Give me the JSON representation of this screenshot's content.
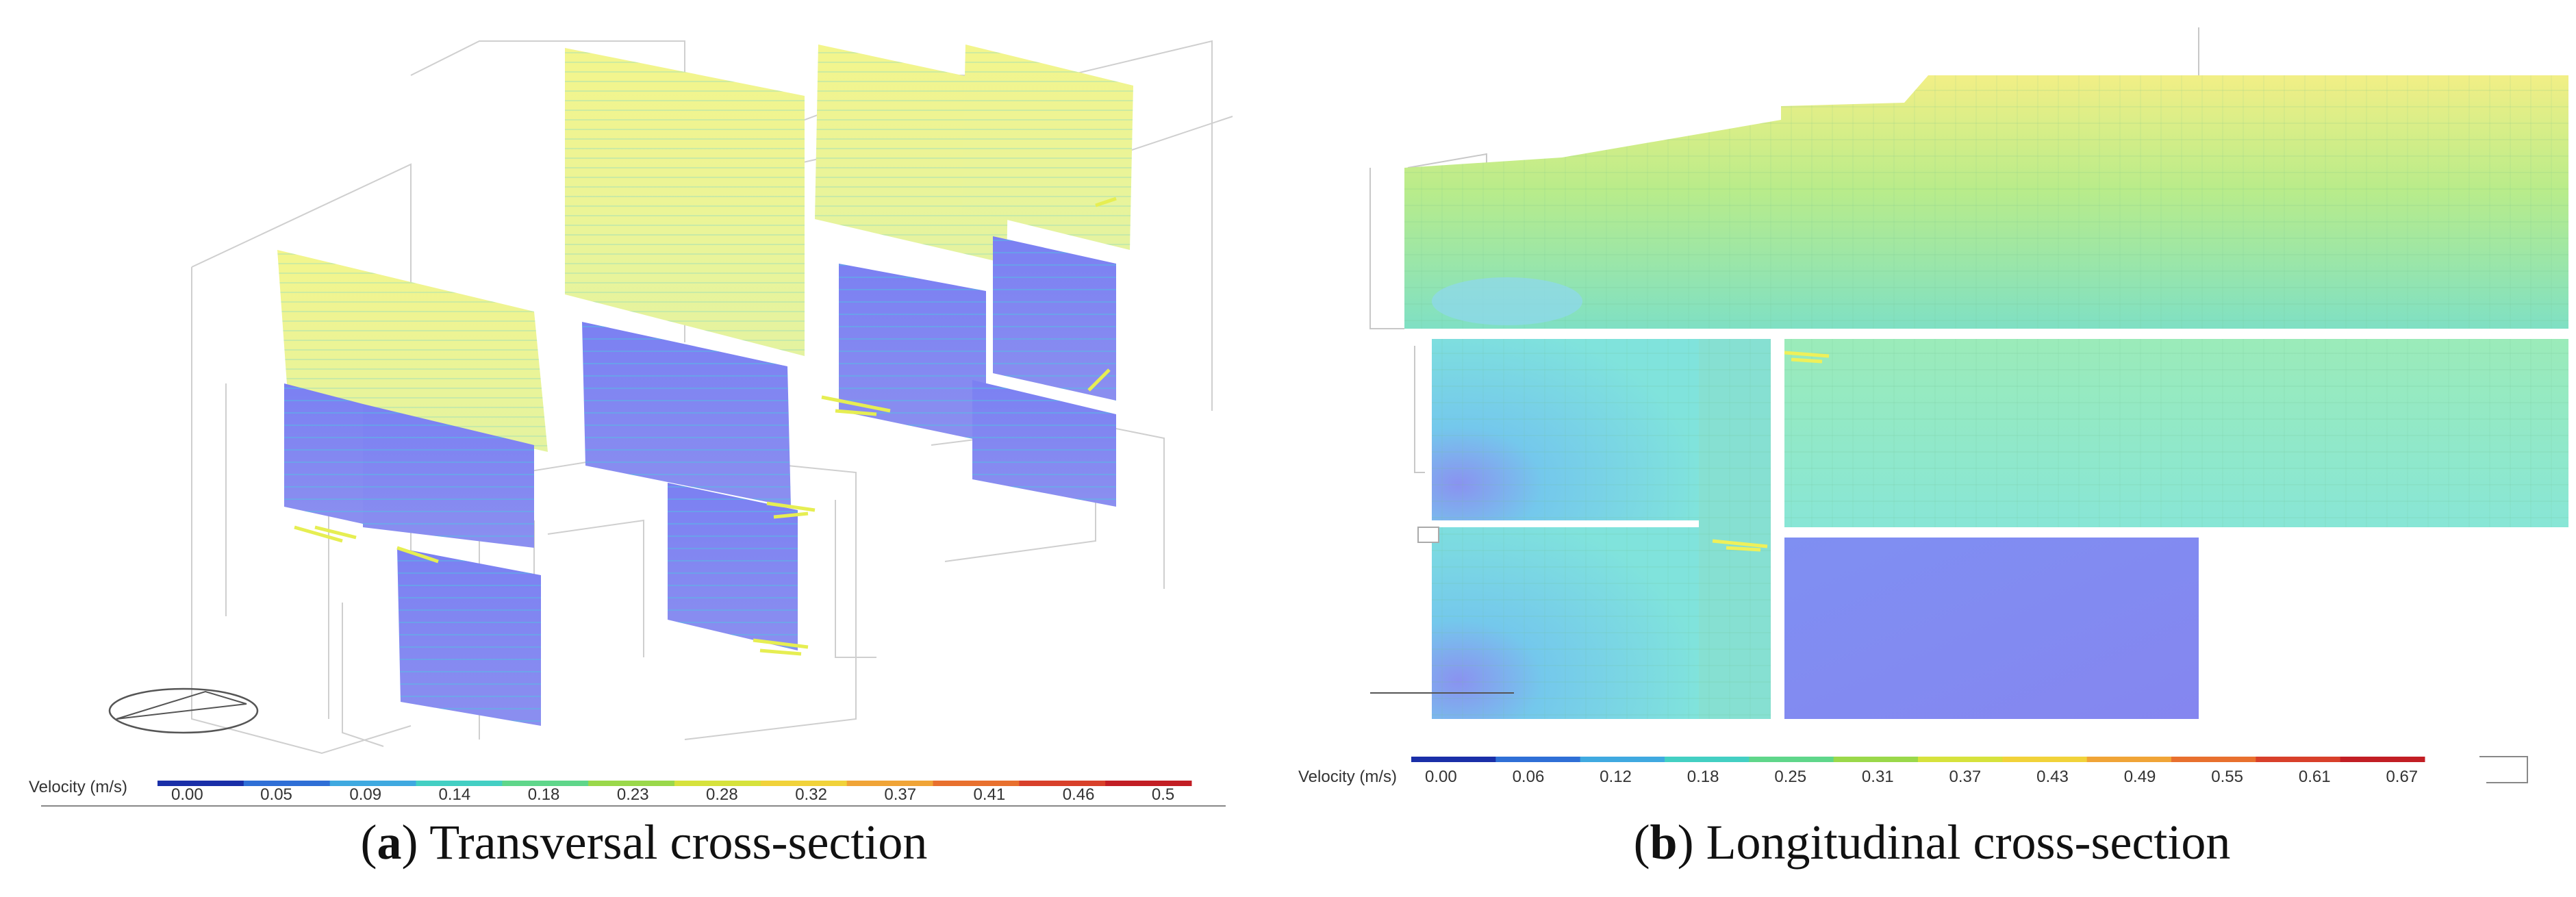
{
  "panels": [
    {
      "letter": "a",
      "caption": "Transversal cross-section",
      "legend": {
        "title": "Velocity (m/s)",
        "ticks": [
          "0.00",
          "0.05",
          "0.09",
          "0.14",
          "0.18",
          "0.23",
          "0.28",
          "0.32",
          "0.37",
          "0.41",
          "0.46",
          "0.5"
        ]
      }
    },
    {
      "letter": "b",
      "caption": "Longitudinal cross-section",
      "legend": {
        "title": "Velocity (m/s)",
        "ticks": [
          "0.00",
          "0.06",
          "0.12",
          "0.18",
          "0.25",
          "0.31",
          "0.37",
          "0.43",
          "0.49",
          "0.55",
          "0.61",
          "0.67"
        ]
      }
    }
  ],
  "colors": {
    "low": "#7c84f0",
    "mid": "#7fe6d4",
    "high": "#f2f48a",
    "scale": [
      "#1a2fa8",
      "#2f6fd6",
      "#3fa9e0",
      "#43cfc3",
      "#5fd68a",
      "#9ad84a",
      "#d6e23c",
      "#f1d23a",
      "#f0a437",
      "#e8702e",
      "#d8402a",
      "#c21e24"
    ]
  }
}
